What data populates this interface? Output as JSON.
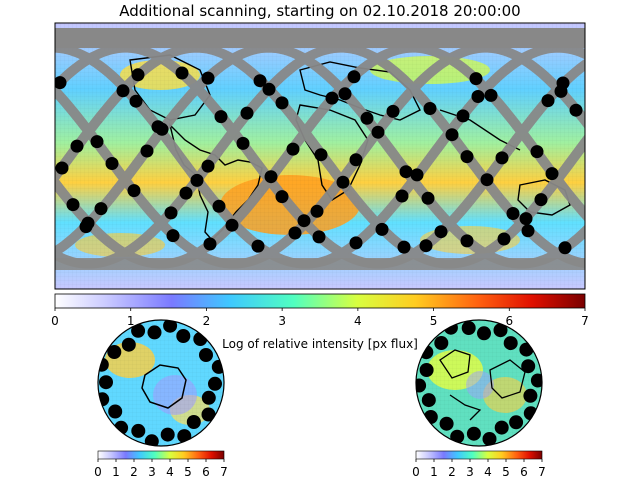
{
  "figure": {
    "title": "Additional scanning, starting on 02.10.2018 20:00:00"
  },
  "main_map": {
    "colorbar": {
      "label": "Log of relative intensity [px flux]",
      "ticks": [
        "0",
        "1",
        "2",
        "3",
        "4",
        "5",
        "6",
        "7"
      ],
      "range": [
        0,
        7
      ]
    }
  },
  "south_polar_map": {
    "colorbar": {
      "ticks": [
        "0",
        "1",
        "2",
        "3",
        "4",
        "5",
        "6",
        "7"
      ],
      "range": [
        0,
        7
      ]
    }
  },
  "north_polar_map": {
    "colorbar": {
      "ticks": [
        "0",
        "1",
        "2",
        "3",
        "4",
        "5",
        "6",
        "7"
      ],
      "range": [
        0,
        7
      ]
    }
  },
  "colors": {
    "track": "#888888",
    "scan_point": "#000000",
    "coastline": "#000000",
    "colormap": [
      "#e8e8ff",
      "#8c8cff",
      "#50d8ff",
      "#60ffb0",
      "#e8ff40",
      "#ffa020",
      "#ff3010",
      "#800000"
    ]
  }
}
